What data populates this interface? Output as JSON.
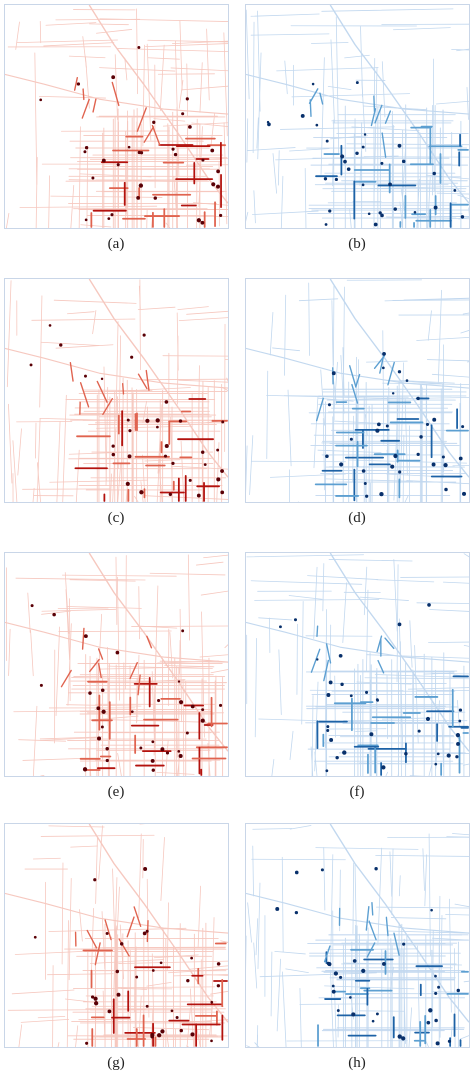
{
  "figure": {
    "panels": [
      {
        "label": "(a)",
        "color": "red"
      },
      {
        "label": "(b)",
        "color": "blue"
      },
      {
        "label": "(c)",
        "color": "red"
      },
      {
        "label": "(d)",
        "color": "blue"
      },
      {
        "label": "(e)",
        "color": "red"
      },
      {
        "label": "(f)",
        "color": "blue"
      },
      {
        "label": "(g)",
        "color": "red"
      },
      {
        "label": "(h)",
        "color": "blue"
      }
    ],
    "palettes": {
      "red": {
        "light": "#f6c8bf",
        "mid": "#e0634f",
        "dark": "#b3120e",
        "darkest": "#5a0006"
      },
      "blue": {
        "light": "#c2d8ef",
        "mid": "#5c9fd1",
        "dark": "#1d62a6",
        "darkest": "#08306b"
      }
    }
  }
}
